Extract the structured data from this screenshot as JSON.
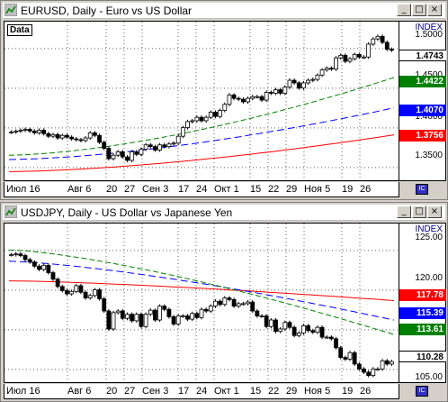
{
  "windows": [
    {
      "title": "EURUSD, Daily - Euro vs US Dollar",
      "data_label": "Data",
      "index_label": "INDEX",
      "buttons": [
        "_",
        "□",
        "×"
      ],
      "price_ticks": [
        "1.5000",
        "1.4500",
        "1.4000",
        "1.3500"
      ],
      "price_tags": [
        {
          "label": "1.4743",
          "bg": "#ffffff",
          "fg": "#000000"
        },
        {
          "label": "1.4422",
          "bg": "#008000",
          "fg": "#ffffff"
        },
        {
          "label": "1.4070",
          "bg": "#0000ff",
          "fg": "#ffffff"
        },
        {
          "label": "1.3756",
          "bg": "#ff0000",
          "fg": "#ffffff"
        }
      ],
      "date_ticks": [
        "Июл 16",
        "Авг 6",
        "20",
        "27",
        "Сен 3",
        "17",
        "24",
        "Окт 1",
        "15",
        "22",
        "29",
        "Ноя 5",
        "19",
        "26"
      ]
    },
    {
      "title": "USDJPY, Daily - US Dollar vs Japanese Yen",
      "index_label": "INDEX",
      "buttons": [
        "_",
        "□",
        "×"
      ],
      "price_ticks": [
        "125.00",
        "120.00",
        "105.00"
      ],
      "price_tags": [
        {
          "label": "117.78",
          "bg": "#ff0000",
          "fg": "#ffffff"
        },
        {
          "label": "115.39",
          "bg": "#0000ff",
          "fg": "#ffffff"
        },
        {
          "label": "113.61",
          "bg": "#008000",
          "fg": "#ffffff"
        },
        {
          "label": "110.28",
          "bg": "#ffffff",
          "fg": "#000000"
        }
      ],
      "date_ticks": [
        "Июл 16",
        "Авг 6",
        "20",
        "27",
        "Сен 3",
        "17",
        "24",
        "Окт 1",
        "15",
        "22",
        "29",
        "Ноя 5",
        "19",
        "26"
      ]
    }
  ],
  "chart_data": [
    {
      "type": "candlestick",
      "title": "EURUSD, Daily - Euro vs US Dollar",
      "ylim": [
        1.325,
        1.505
      ],
      "close": [
        1.379,
        1.38,
        1.381,
        1.382,
        1.38,
        1.378,
        1.381,
        1.377,
        1.374,
        1.376,
        1.372,
        1.375,
        1.373,
        1.371,
        1.37,
        1.369,
        1.372,
        1.378,
        1.375,
        1.367,
        1.36,
        1.348,
        1.352,
        1.356,
        1.35,
        1.346,
        1.356,
        1.353,
        1.359,
        1.364,
        1.362,
        1.358,
        1.364,
        1.362,
        1.365,
        1.366,
        1.374,
        1.384,
        1.391,
        1.392,
        1.396,
        1.392,
        1.396,
        1.402,
        1.397,
        1.404,
        1.411,
        1.422,
        1.418,
        1.417,
        1.414,
        1.418,
        1.42,
        1.42,
        1.416,
        1.425,
        1.424,
        1.428,
        1.424,
        1.431,
        1.439,
        1.436,
        1.43,
        1.436,
        1.439,
        1.44,
        1.445,
        1.451,
        1.453,
        1.452,
        1.465,
        1.468,
        1.461,
        1.464,
        1.469,
        1.466,
        1.466,
        1.481,
        1.487,
        1.49,
        1.483,
        1.475,
        1.474
      ],
      "series": [
        {
          "name": "MA green",
          "color": "#008000",
          "values_start": 1.352,
          "values_end": 1.4422
        },
        {
          "name": "MA blue",
          "color": "#0000ff",
          "values_start": 1.347,
          "values_end": 1.407
        },
        {
          "name": "MA red",
          "color": "#ff0000",
          "values_start": 1.333,
          "values_end": 1.3756
        }
      ]
    },
    {
      "type": "candlestick",
      "title": "USDJPY, Daily - US Dollar vs Japanese Yen",
      "ylim": [
        108.0,
        127.0
      ],
      "close": [
        123.4,
        123.5,
        123.3,
        122.8,
        122.5,
        122.0,
        121.6,
        122.1,
        121.2,
        120.4,
        119.5,
        119.0,
        118.6,
        118.9,
        119.6,
        118.8,
        118.1,
        118.4,
        119.1,
        118.0,
        116.5,
        114.3,
        116.3,
        116.5,
        115.6,
        116.1,
        115.3,
        116.1,
        114.6,
        116.1,
        116.6,
        115.4,
        117.1,
        116.7,
        115.8,
        114.9,
        115.9,
        115.9,
        115.5,
        116.2,
        115.7,
        116.7,
        116.5,
        117.1,
        117.7,
        117.3,
        118.1,
        117.9,
        117.1,
        117.4,
        117.4,
        117.6,
        116.5,
        115.9,
        115.9,
        114.6,
        115.4,
        114.0,
        114.3,
        115.1,
        114.5,
        113.5,
        113.8,
        114.7,
        114.1,
        113.9,
        114.5,
        113.3,
        113.3,
        113.1,
        112.0,
        110.8,
        110.6,
        111.4,
        110.0,
        109.4,
        109.0,
        108.6,
        109.4,
        109.4,
        110.4,
        110.0,
        110.3
      ],
      "series": [
        {
          "name": "MA red",
          "color": "#ff0000",
          "values_start": 120.2,
          "values_end": 117.78
        },
        {
          "name": "MA blue",
          "color": "#0000ff",
          "values_start": 122.6,
          "values_end": 115.39
        },
        {
          "name": "MA green",
          "color": "#008000",
          "values_start": 124.0,
          "values_end": 113.61
        }
      ]
    }
  ]
}
